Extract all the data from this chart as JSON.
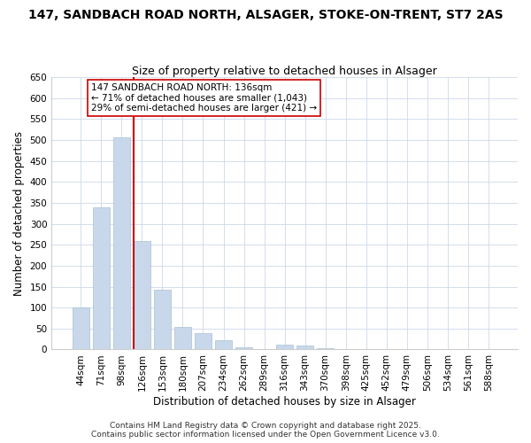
{
  "title": "147, SANDBACH ROAD NORTH, ALSAGER, STOKE-ON-TRENT, ST7 2AS",
  "subtitle": "Size of property relative to detached houses in Alsager",
  "xlabel": "Distribution of detached houses by size in Alsager",
  "ylabel": "Number of detached properties",
  "categories": [
    "44sqm",
    "71sqm",
    "98sqm",
    "126sqm",
    "153sqm",
    "180sqm",
    "207sqm",
    "234sqm",
    "262sqm",
    "289sqm",
    "316sqm",
    "343sqm",
    "370sqm",
    "398sqm",
    "425sqm",
    "452sqm",
    "479sqm",
    "506sqm",
    "534sqm",
    "561sqm",
    "588sqm"
  ],
  "values": [
    100,
    340,
    507,
    258,
    143,
    53,
    38,
    23,
    5,
    0,
    11,
    9,
    3,
    0,
    0,
    0,
    0,
    0,
    0,
    0,
    0
  ],
  "bar_color": "#c8d8ea",
  "bar_edge_color": "#a8c0d4",
  "vline_color": "#cc0000",
  "annotation_text": "147 SANDBACH ROAD NORTH: 136sqm\n← 71% of detached houses are smaller (1,043)\n29% of semi-detached houses are larger (421) →",
  "annotation_box_color": "#ffffff",
  "annotation_box_edge": "#cc0000",
  "ylim": [
    0,
    650
  ],
  "yticks": [
    0,
    50,
    100,
    150,
    200,
    250,
    300,
    350,
    400,
    450,
    500,
    550,
    600,
    650
  ],
  "footer1": "Contains HM Land Registry data © Crown copyright and database right 2025.",
  "footer2": "Contains public sector information licensed under the Open Government Licence v3.0.",
  "bg_color": "#ffffff",
  "grid_color": "#ccd8e8",
  "title_fontsize": 10,
  "subtitle_fontsize": 9,
  "axis_label_fontsize": 8.5,
  "tick_fontsize": 7.5,
  "annotation_fontsize": 7.5,
  "footer_fontsize": 6.5
}
